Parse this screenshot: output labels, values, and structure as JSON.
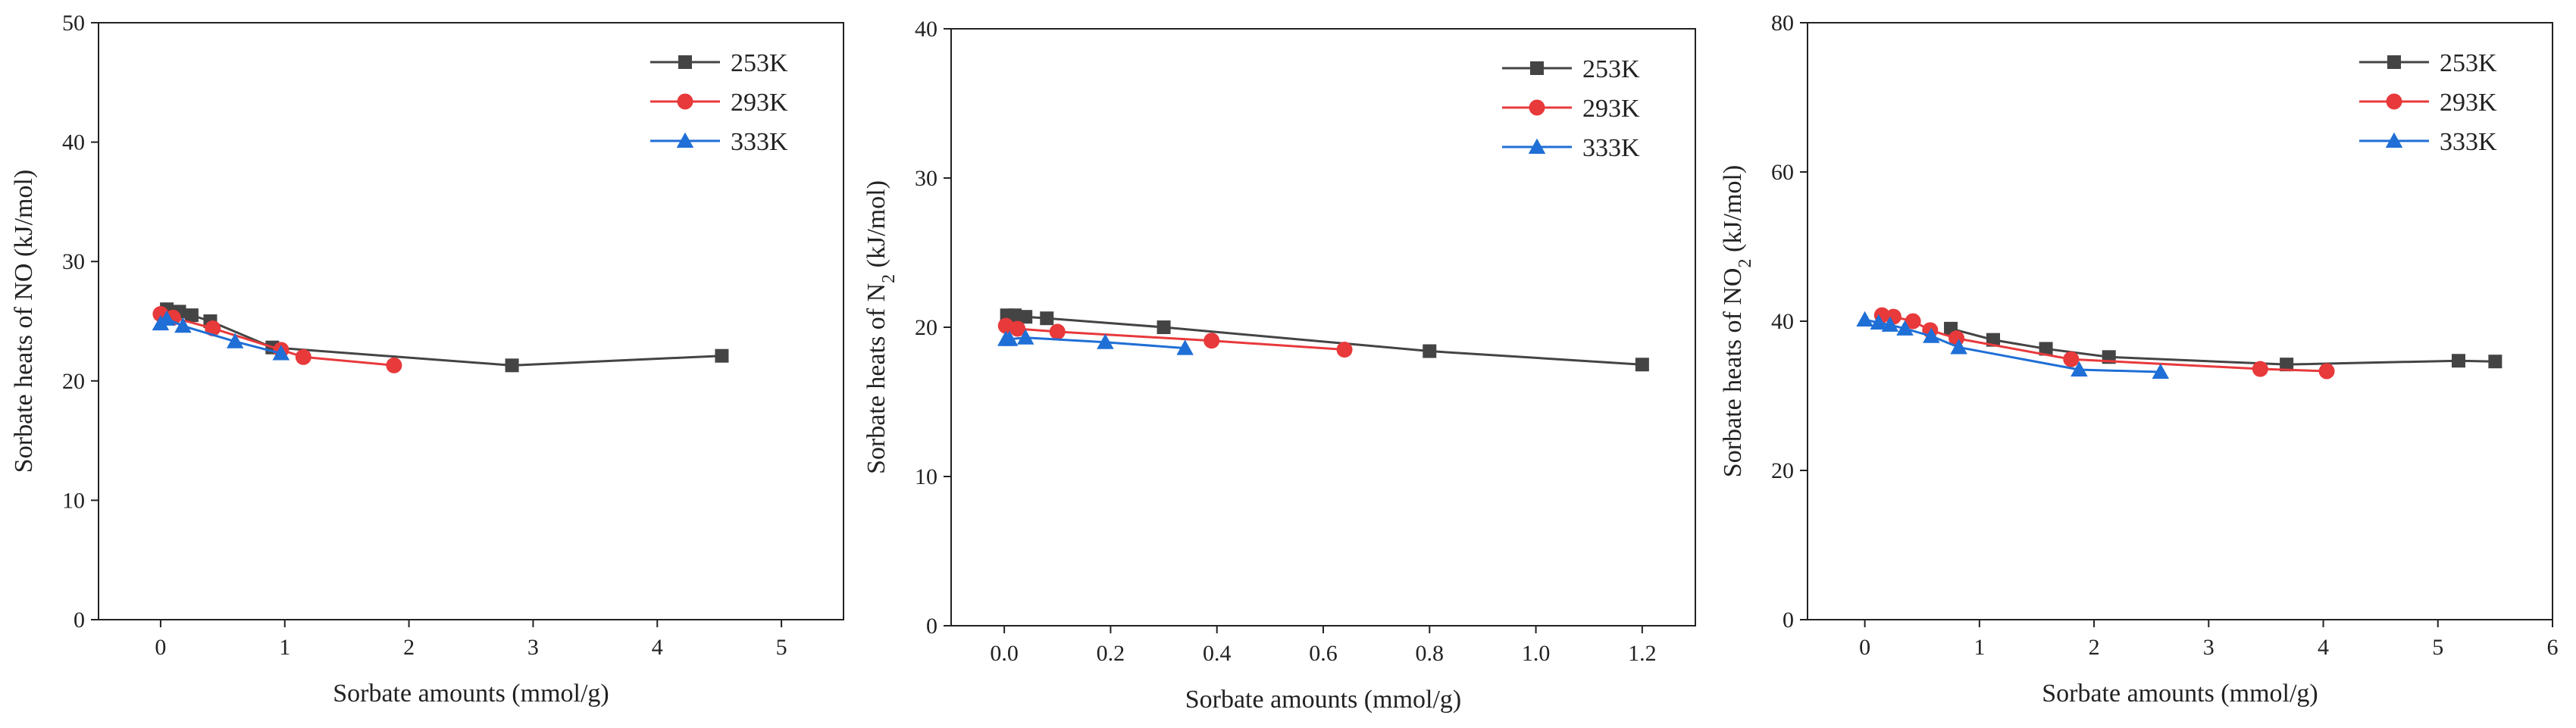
{
  "chart_data": [
    {
      "type": "line",
      "xlabel": "Sorbate amounts (mmol/g)",
      "ylabel": "Sorbate heats of NO (kJ/mol)",
      "xlim": [
        -0.5,
        5.5
      ],
      "ylim": [
        0,
        50
      ],
      "xticks": [
        0,
        1,
        2,
        3,
        4,
        5
      ],
      "yticks": [
        0,
        10,
        20,
        30,
        40,
        50
      ],
      "xtick_labels": [
        "0",
        "1",
        "2",
        "3",
        "4",
        "5"
      ],
      "ytick_labels": [
        "0",
        "10",
        "20",
        "30",
        "40",
        "50"
      ],
      "legend": "top-right",
      "series": [
        {
          "name": "253K",
          "color": "#444444",
          "marker": "square",
          "x": [
            0.05,
            0.15,
            0.25,
            0.4,
            0.9,
            2.83,
            4.52
          ],
          "y": [
            26.0,
            25.8,
            25.5,
            25.0,
            22.8,
            21.3,
            22.1
          ]
        },
        {
          "name": "293K",
          "color": "#e8393b",
          "marker": "circle",
          "x": [
            0.0,
            0.1,
            0.42,
            0.97,
            1.15,
            1.88
          ],
          "y": [
            25.6,
            25.3,
            24.4,
            22.6,
            22.0,
            21.3
          ]
        },
        {
          "name": "333K",
          "color": "#1f6fd6",
          "marker": "triangle",
          "x": [
            0.0,
            0.05,
            0.18,
            0.6,
            0.97
          ],
          "y": [
            24.8,
            25.2,
            24.6,
            23.3,
            22.3
          ]
        }
      ]
    },
    {
      "type": "line",
      "xlabel": "Sorbate amounts (mmol/g)",
      "ylabel": "Sorbate heats of N",
      "ylabel_sub": "2",
      "ylabel_tail": " (kJ/mol)",
      "xlim": [
        -0.1,
        1.3
      ],
      "ylim": [
        0,
        40
      ],
      "xticks": [
        0.0,
        0.2,
        0.4,
        0.6,
        0.8,
        1.0,
        1.2
      ],
      "yticks": [
        0,
        10,
        20,
        30,
        40
      ],
      "xtick_labels": [
        "0.0",
        "0.2",
        "0.4",
        "0.6",
        "0.8",
        "1.0",
        "1.2"
      ],
      "ytick_labels": [
        "0",
        "10",
        "20",
        "30",
        "40"
      ],
      "legend": "top-right",
      "series": [
        {
          "name": "253K",
          "color": "#444444",
          "marker": "square",
          "x": [
            0.005,
            0.02,
            0.04,
            0.08,
            0.3,
            0.8,
            1.2
          ],
          "y": [
            20.8,
            20.8,
            20.7,
            20.6,
            20.0,
            18.4,
            17.5
          ]
        },
        {
          "name": "293K",
          "color": "#e8393b",
          "marker": "circle",
          "x": [
            0.003,
            0.025,
            0.1,
            0.39,
            0.64
          ],
          "y": [
            20.1,
            19.9,
            19.7,
            19.1,
            18.5
          ]
        },
        {
          "name": "333K",
          "color": "#1f6fd6",
          "marker": "triangle",
          "x": [
            0.003,
            0.01,
            0.04,
            0.19,
            0.34
          ],
          "y": [
            19.2,
            19.2,
            19.3,
            19.0,
            18.6
          ]
        }
      ]
    },
    {
      "type": "line",
      "xlabel": "Sorbate amounts (mmol/g)",
      "ylabel": "Sorbate heats of NO",
      "ylabel_sub": "2",
      "ylabel_tail": " (kJ/mol)",
      "xlim": [
        -0.5,
        6.0
      ],
      "ylim": [
        0,
        80
      ],
      "xticks": [
        0,
        1,
        2,
        3,
        4,
        5,
        6
      ],
      "yticks": [
        0,
        20,
        40,
        60,
        80
      ],
      "xtick_labels": [
        "0",
        "1",
        "2",
        "3",
        "4",
        "5",
        "6"
      ],
      "ytick_labels": [
        "0",
        "20",
        "40",
        "60",
        "80"
      ],
      "legend": "top-right",
      "series": [
        {
          "name": "253K",
          "color": "#444444",
          "marker": "square",
          "x": [
            0.75,
            1.12,
            1.58,
            2.13,
            3.68,
            5.18,
            5.5
          ],
          "y": [
            39.0,
            37.5,
            36.3,
            35.2,
            34.2,
            34.7,
            34.6
          ]
        },
        {
          "name": "293K",
          "color": "#e8393b",
          "marker": "circle",
          "x": [
            0.15,
            0.25,
            0.42,
            0.57,
            0.8,
            1.8,
            3.45,
            4.03
          ],
          "y": [
            40.8,
            40.6,
            40.0,
            38.8,
            37.7,
            34.9,
            33.6,
            33.3
          ]
        },
        {
          "name": "333K",
          "color": "#1f6fd6",
          "marker": "triangle",
          "x": [
            0.0,
            0.12,
            0.22,
            0.35,
            0.58,
            0.82,
            1.87,
            2.58
          ],
          "y": [
            40.2,
            39.8,
            39.5,
            39.0,
            38.0,
            36.5,
            33.5,
            33.2
          ]
        }
      ]
    }
  ]
}
